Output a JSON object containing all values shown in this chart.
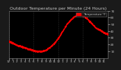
{
  "title": "Outdoor Temperature per Minute (24 Hours)",
  "bg_color": "#000000",
  "plot_bg": "#000000",
  "fig_bg": "#1a1a1a",
  "dot_color": "#ff0000",
  "dot_size": 0.8,
  "legend_label": "Temperature °F",
  "legend_color": "#ff0000",
  "ylim": [
    0,
    70
  ],
  "yticks": [
    10,
    20,
    30,
    40,
    50,
    60,
    70
  ],
  "ytick_labels": [
    "10",
    "20",
    "30",
    "40",
    "50",
    "60",
    "70"
  ],
  "grid_color": "#555555",
  "n_points": 1440,
  "temperature_profile_x": [
    0,
    60,
    120,
    180,
    240,
    300,
    360,
    420,
    480,
    540,
    600,
    660,
    720,
    780,
    840,
    900,
    960,
    1020,
    1080,
    1140,
    1200,
    1260,
    1320,
    1380,
    1439
  ],
  "temperature_profile_y": [
    25,
    22,
    19,
    17,
    15,
    13,
    11,
    10,
    10,
    12,
    16,
    22,
    30,
    40,
    50,
    57,
    62,
    65,
    63,
    58,
    52,
    45,
    42,
    38,
    35
  ],
  "x_tick_labels": [
    "12",
    "1",
    "2",
    "3",
    "4",
    "5",
    "6",
    "7",
    "8",
    "9",
    "10",
    "11",
    "12",
    "1",
    "2",
    "3",
    "4",
    "5",
    "6",
    "7",
    "8",
    "9",
    "10",
    "11"
  ],
  "x_tick_sublabels": [
    "am",
    "",
    "",
    "",
    "",
    "",
    "",
    "",
    "",
    "",
    "",
    "",
    "pm",
    "",
    "",
    "",
    "",
    "",
    "",
    "",
    "",
    "",
    "",
    ""
  ],
  "title_fontsize": 4.5,
  "tick_fontsize": 3.0,
  "text_color": "#cccccc",
  "spine_color": "#888888"
}
